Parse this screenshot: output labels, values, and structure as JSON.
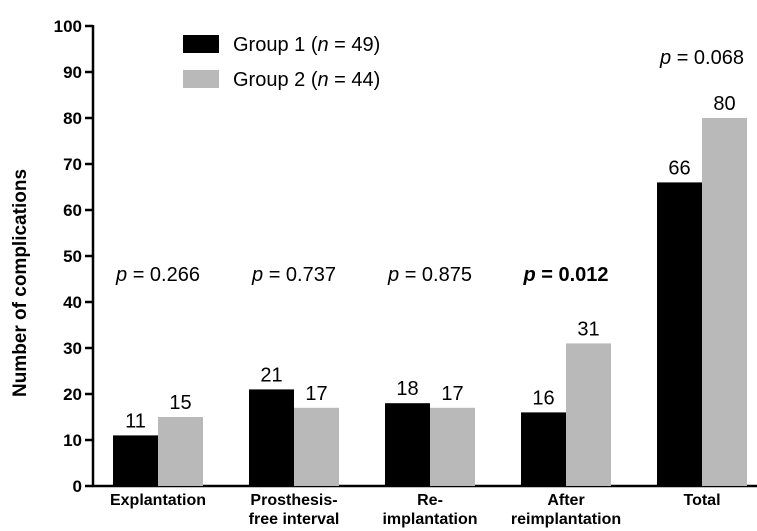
{
  "chart_data": {
    "type": "bar",
    "ylabel": "Number of complications",
    "ylim": [
      0,
      100
    ],
    "yticks": [
      0,
      10,
      20,
      30,
      40,
      50,
      60,
      70,
      80,
      90,
      100
    ],
    "categories": [
      [
        "Explantation"
      ],
      [
        "Prosthesis-",
        "free interval"
      ],
      [
        "Re-",
        "implantation"
      ],
      [
        "After",
        "reimplantation"
      ],
      [
        "Total"
      ]
    ],
    "series": [
      {
        "name": "Group 1 (n = 49)",
        "name_prefix": "Group 1 (",
        "name_italic": "n",
        "name_suffix": " = 49)",
        "color": "#000000",
        "values": [
          11,
          21,
          18,
          16,
          66
        ]
      },
      {
        "name": "Group 2 (n = 44)",
        "name_prefix": "Group 2 (",
        "name_italic": "n",
        "name_suffix": " = 44)",
        "color": "#b9b9b9",
        "values": [
          15,
          17,
          17,
          31,
          80
        ]
      }
    ],
    "p_values": [
      {
        "italic": "p",
        "rest": " = 0.266",
        "bold": false
      },
      {
        "italic": "p",
        "rest": " = 0.737",
        "bold": false
      },
      {
        "italic": "p",
        "rest": " = 0.875",
        "bold": false
      },
      {
        "italic": "p",
        "rest": " = 0.012",
        "bold": true
      },
      {
        "italic": "p",
        "rest": " = 0.068",
        "bold": false
      }
    ],
    "legend_position": "top-left",
    "grid": false
  }
}
